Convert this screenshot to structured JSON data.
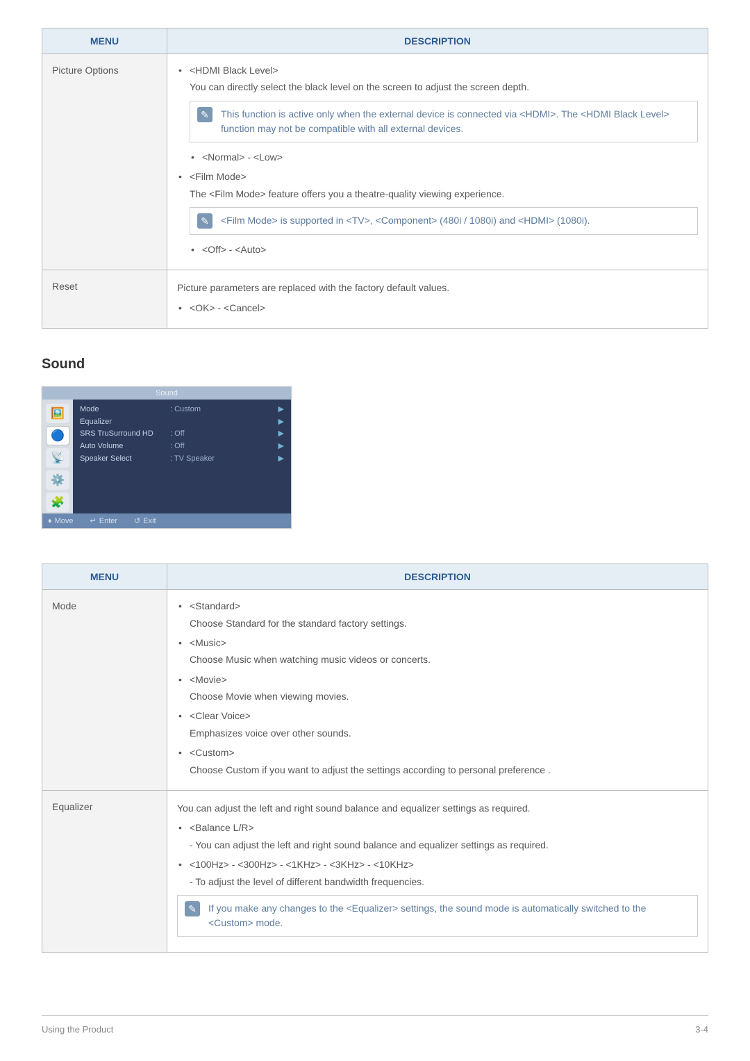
{
  "table1": {
    "headers": {
      "menu": "MENU",
      "desc": "DESCRIPTION"
    },
    "rows": [
      {
        "menu": "Picture Options",
        "items": [
          {
            "title": "<HDMI Black Level>",
            "desc": "You can directly select the black level on the screen to adjust the screen depth.",
            "note": "This function is active only when the external device is connected via <HDMI>. The <HDMI Black Level> function may not be compatible with all external devices.",
            "sub": [
              "<Normal> - <Low>"
            ]
          },
          {
            "title": "<Film Mode>",
            "desc": "The <Film Mode> feature offers you a theatre-quality viewing experience.",
            "note": "<Film Mode> is supported in <TV>, <Component> (480i / 1080i) and <HDMI> (1080i).",
            "sub": [
              "<Off> - <Auto>"
            ]
          }
        ]
      },
      {
        "menu": "Reset",
        "plain": "Picture parameters are replaced with the factory default values.",
        "sub": [
          "<OK> - <Cancel>"
        ]
      }
    ]
  },
  "section_sound": "Sound",
  "osd": {
    "title": "Sound",
    "tabs_emoji": [
      "🖼️",
      "🔵",
      "📡",
      "⚙️",
      "🧩"
    ],
    "rows": [
      {
        "label": "Mode",
        "value": ": Custom"
      },
      {
        "label": "Equalizer",
        "value": ""
      },
      {
        "label": "SRS TruSurround HD",
        "value": ": Off"
      },
      {
        "label": "Auto Volume",
        "value": ": Off"
      },
      {
        "label": "Speaker Select",
        "value": ": TV Speaker"
      }
    ],
    "footer": {
      "move": "Move",
      "enter": "Enter",
      "exit": "Exit"
    }
  },
  "table2": {
    "headers": {
      "menu": "MENU",
      "desc": "DESCRIPTION"
    },
    "rows": [
      {
        "menu": "Mode",
        "items": [
          {
            "title": "<Standard>",
            "desc": "Choose Standard for the standard factory settings."
          },
          {
            "title": "<Music>",
            "desc": "Choose Music when watching music videos or concerts."
          },
          {
            "title": "<Movie>",
            "desc": "Choose Movie when viewing movies."
          },
          {
            "title": "<Clear Voice>",
            "desc": "Emphasizes voice over other sounds."
          },
          {
            "title": "<Custom>",
            "desc": "Choose Custom if you want to adjust the settings according to personal preference ."
          }
        ]
      },
      {
        "menu": "Equalizer",
        "plain": "You can adjust the left and right sound balance and equalizer settings as required.",
        "items": [
          {
            "title": "<Balance L/R>",
            "desc": "- You can adjust the left and right sound balance and equalizer settings as required."
          },
          {
            "title": "<100Hz> - <300Hz> - <1KHz> - <3KHz> - <10KHz>",
            "desc": "- To adjust the level of different bandwidth frequencies."
          }
        ],
        "note": "If you make any changes to the <Equalizer> settings, the sound mode is automatically switched to the <Custom> mode."
      }
    ]
  },
  "footer": {
    "left": "Using the Product",
    "right": "3-4"
  },
  "colors": {
    "header_bg": "#e6eef5",
    "header_text": "#2a5a94",
    "note_text": "#5c7a9c",
    "body_text": "#555"
  }
}
